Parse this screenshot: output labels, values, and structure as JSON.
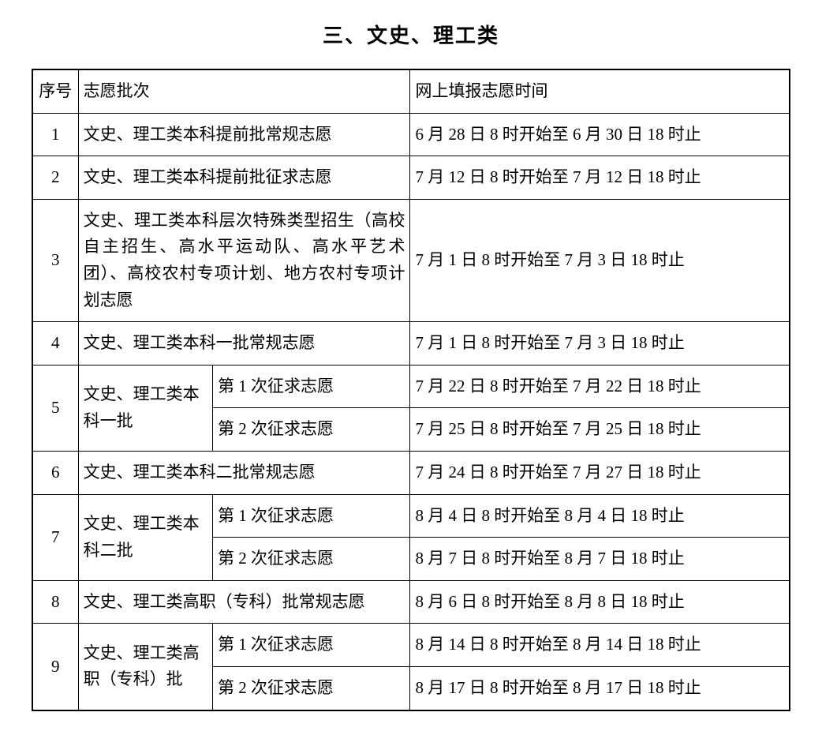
{
  "title": "三、文史、理工类",
  "headers": {
    "seq": "序号",
    "batch": "志愿批次",
    "time": "网上填报志愿时间"
  },
  "rows": {
    "r1": {
      "seq": "1",
      "batch": "文史、理工类本科提前批常规志愿",
      "time": "6 月 28 日 8 时开始至 6 月 30 日 18 时止"
    },
    "r2": {
      "seq": "2",
      "batch": "文史、理工类本科提前批征求志愿",
      "time": "7 月 12 日 8 时开始至 7 月 12 日 18 时止"
    },
    "r3": {
      "seq": "3",
      "batch": "文史、理工类本科层次特殊类型招生（高校自主招生、高水平运动队、高水平艺术团）、高校农村专项计划、地方农村专项计划志愿",
      "time": "7 月 1 日 8 时开始至 7 月 3 日 18 时止"
    },
    "r4": {
      "seq": "4",
      "batch": "文史、理工类本科一批常规志愿",
      "time": "7 月 1 日 8 时开始至 7 月  3 日 18 时止"
    },
    "r5": {
      "seq": "5",
      "batch_a": "文史、理工类本科一批",
      "sub1_batch": "第 1 次征求志愿",
      "sub1_time": "7 月 22 日 8 时开始至 7 月 22 日 18 时止",
      "sub2_batch": "第 2 次征求志愿",
      "sub2_time": "7 月 25 日 8 时开始至 7 月 25 日 18 时止"
    },
    "r6": {
      "seq": "6",
      "batch": "文史、理工类本科二批常规志愿",
      "time": "7 月 24 日 8 时开始至 7 月 27 日 18 时止"
    },
    "r7": {
      "seq": "7",
      "batch_a": "文史、理工类本科二批",
      "sub1_batch": "第 1 次征求志愿",
      "sub1_time": "8 月 4 日 8 时开始至 8 月 4 日 18 时止",
      "sub2_batch": "第 2 次征求志愿",
      "sub2_time": "8 月 7 日 8 时开始至 8 月 7 日 18 时止"
    },
    "r8": {
      "seq": "8",
      "batch": "文史、理工类高职（专科）批常规志愿",
      "time": "8 月 6 日 8 时开始至 8 月 8 日 18 时止"
    },
    "r9": {
      "seq": "9",
      "batch_a": "文史、理工类高职（专科）批",
      "sub1_batch": "第 1 次征求志愿",
      "sub1_time": "8 月 14 日 8 时开始至 8 月 14 日 18 时止",
      "sub2_batch": "第 2 次征求志愿",
      "sub2_time": "8 月 17 日 8 时开始至 8 月 17 日 18 时止"
    }
  },
  "styling": {
    "background_color": "#ffffff",
    "border_color": "#000000",
    "text_color": "#000000",
    "title_fontsize": 26,
    "cell_fontsize": 21,
    "font_family": "SimSun",
    "col_widths": {
      "seq": 58,
      "batch": 420,
      "batch_split_a": 170,
      "batch_split_b": 250,
      "time": 480
    }
  }
}
